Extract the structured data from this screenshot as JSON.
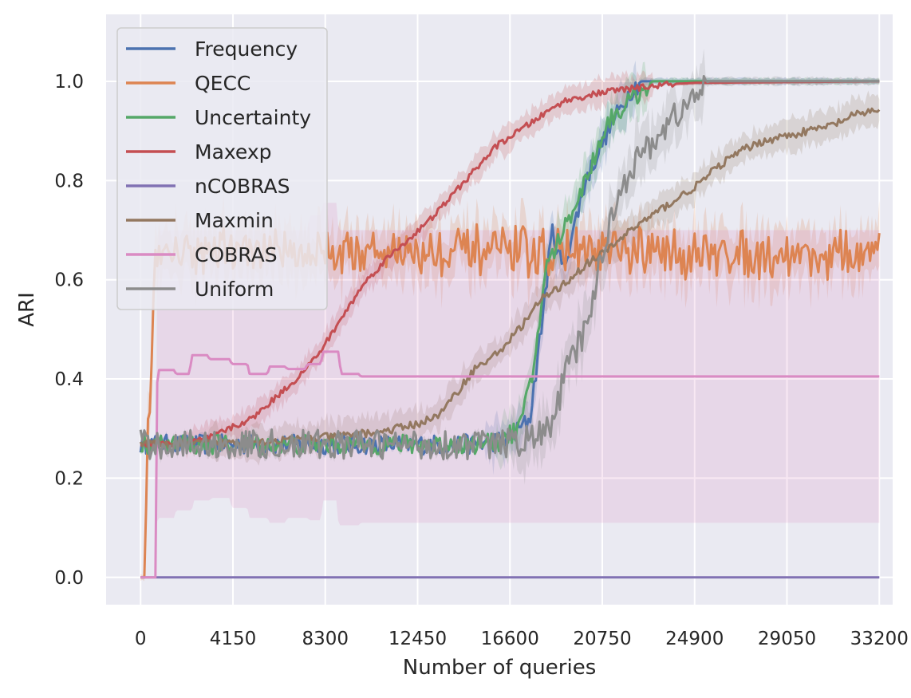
{
  "chart_data": {
    "type": "line",
    "title": "",
    "xlabel": "Number of queries",
    "ylabel": "ARI",
    "xlim": [
      -1550,
      33800
    ],
    "ylim": [
      -0.055,
      1.135
    ],
    "xticks": [
      0,
      4150,
      8300,
      12450,
      16600,
      20750,
      24900,
      29050,
      33200
    ],
    "yticks": [
      0.0,
      0.2,
      0.4,
      0.6,
      0.8,
      1.0
    ],
    "ytick_labels": [
      "0.0",
      "0.2",
      "0.4",
      "0.6",
      "0.8",
      "1.0"
    ],
    "grid": true,
    "legend_position": "top-left",
    "series": [
      {
        "name": "Frequency",
        "color": "#4c72b0",
        "noise": 0.02,
        "band": 0.04,
        "points": [
          [
            0,
            0.268
          ],
          [
            14500,
            0.268
          ],
          [
            15500,
            0.27
          ],
          [
            16600,
            0.28
          ],
          [
            17500,
            0.32
          ],
          [
            18000,
            0.5
          ],
          [
            18500,
            0.7
          ],
          [
            19000,
            0.62
          ],
          [
            20000,
            0.8
          ],
          [
            21000,
            0.9
          ],
          [
            22000,
            0.98
          ],
          [
            22500,
            1.0
          ],
          [
            33200,
            1.0
          ]
        ]
      },
      {
        "name": "QECC",
        "color": "#dd8452",
        "noise": 0.03,
        "band": 0.05,
        "points": [
          [
            0,
            0.0
          ],
          [
            200,
            0.0
          ],
          [
            300,
            0.31
          ],
          [
            450,
            0.35
          ],
          [
            600,
            0.62
          ],
          [
            800,
            0.66
          ],
          [
            33200,
            0.65
          ]
        ]
      },
      {
        "name": "Uncertainty",
        "color": "#55a868",
        "noise": 0.02,
        "band": 0.04,
        "points": [
          [
            0,
            0.268
          ],
          [
            14500,
            0.268
          ],
          [
            16000,
            0.27
          ],
          [
            17000,
            0.3
          ],
          [
            17600,
            0.4
          ],
          [
            18200,
            0.62
          ],
          [
            19000,
            0.7
          ],
          [
            20000,
            0.8
          ],
          [
            21000,
            0.92
          ],
          [
            22000,
            0.96
          ],
          [
            23000,
            1.0
          ],
          [
            33200,
            1.0
          ]
        ]
      },
      {
        "name": "Maxexp",
        "color": "#c44e52",
        "noise": 0.006,
        "band": 0.025,
        "points": [
          [
            0,
            0.268
          ],
          [
            2000,
            0.27
          ],
          [
            3000,
            0.28
          ],
          [
            4000,
            0.3
          ],
          [
            5000,
            0.32
          ],
          [
            6000,
            0.36
          ],
          [
            7000,
            0.4
          ],
          [
            8000,
            0.45
          ],
          [
            9000,
            0.52
          ],
          [
            10000,
            0.59
          ],
          [
            11000,
            0.64
          ],
          [
            12000,
            0.68
          ],
          [
            13000,
            0.72
          ],
          [
            14000,
            0.77
          ],
          [
            15000,
            0.82
          ],
          [
            16000,
            0.87
          ],
          [
            17000,
            0.9
          ],
          [
            18000,
            0.93
          ],
          [
            19000,
            0.96
          ],
          [
            20000,
            0.97
          ],
          [
            21000,
            0.98
          ],
          [
            22000,
            0.985
          ],
          [
            23000,
            0.99
          ],
          [
            24000,
            0.995
          ],
          [
            25000,
            0.997
          ],
          [
            33200,
            1.0
          ]
        ]
      },
      {
        "name": "nCOBRAS",
        "color": "#8172b3",
        "noise": 0,
        "band": 0,
        "points": [
          [
            0,
            0.0
          ],
          [
            33200,
            0.0
          ]
        ]
      },
      {
        "name": "Maxmin",
        "color": "#937860",
        "noise": 0.008,
        "band": 0.03,
        "points": [
          [
            0,
            0.268
          ],
          [
            3000,
            0.27
          ],
          [
            6000,
            0.275
          ],
          [
            9000,
            0.285
          ],
          [
            11000,
            0.295
          ],
          [
            12500,
            0.31
          ],
          [
            13500,
            0.33
          ],
          [
            14000,
            0.36
          ],
          [
            15000,
            0.42
          ],
          [
            16000,
            0.45
          ],
          [
            17000,
            0.5
          ],
          [
            18000,
            0.56
          ],
          [
            19000,
            0.59
          ],
          [
            20000,
            0.63
          ],
          [
            21000,
            0.66
          ],
          [
            22000,
            0.7
          ],
          [
            23000,
            0.73
          ],
          [
            24000,
            0.76
          ],
          [
            25000,
            0.79
          ],
          [
            26000,
            0.83
          ],
          [
            27000,
            0.86
          ],
          [
            28000,
            0.88
          ],
          [
            29000,
            0.89
          ],
          [
            30000,
            0.9
          ],
          [
            31000,
            0.91
          ],
          [
            32000,
            0.93
          ],
          [
            33200,
            0.945
          ]
        ]
      },
      {
        "name": "COBRAS",
        "color": "#da8bc3",
        "noise": 0,
        "band": 0,
        "points": [
          [
            0,
            0.0
          ],
          [
            700,
            0.0
          ],
          [
            750,
            0.418
          ],
          [
            1500,
            0.418
          ],
          [
            1600,
            0.41
          ],
          [
            2200,
            0.41
          ],
          [
            2300,
            0.448
          ],
          [
            3000,
            0.448
          ],
          [
            3100,
            0.44
          ],
          [
            4000,
            0.44
          ],
          [
            4100,
            0.43
          ],
          [
            4800,
            0.43
          ],
          [
            4900,
            0.41
          ],
          [
            5700,
            0.41
          ],
          [
            5800,
            0.425
          ],
          [
            6500,
            0.425
          ],
          [
            6600,
            0.42
          ],
          [
            7400,
            0.42
          ],
          [
            7500,
            0.43
          ],
          [
            8100,
            0.43
          ],
          [
            8200,
            0.455
          ],
          [
            8900,
            0.455
          ],
          [
            9000,
            0.41
          ],
          [
            9800,
            0.41
          ],
          [
            9900,
            0.405
          ],
          [
            33200,
            0.405
          ]
        ],
        "band_lower": [
          [
            0,
            0.0
          ],
          [
            700,
            0.0
          ],
          [
            750,
            0.12
          ],
          [
            1500,
            0.12
          ],
          [
            1600,
            0.135
          ],
          [
            2300,
            0.135
          ],
          [
            2400,
            0.155
          ],
          [
            3100,
            0.155
          ],
          [
            3200,
            0.16
          ],
          [
            4000,
            0.16
          ],
          [
            4100,
            0.14
          ],
          [
            4800,
            0.14
          ],
          [
            4900,
            0.12
          ],
          [
            5700,
            0.12
          ],
          [
            5800,
            0.11
          ],
          [
            6500,
            0.11
          ],
          [
            6600,
            0.12
          ],
          [
            7500,
            0.12
          ],
          [
            7600,
            0.115
          ],
          [
            8100,
            0.115
          ],
          [
            8200,
            0.155
          ],
          [
            8800,
            0.155
          ],
          [
            8900,
            0.105
          ],
          [
            9800,
            0.105
          ],
          [
            9900,
            0.11
          ],
          [
            33200,
            0.11
          ]
        ],
        "band_upper": [
          [
            0,
            0.0
          ],
          [
            700,
            0.0
          ],
          [
            750,
            0.7
          ],
          [
            7500,
            0.7
          ],
          [
            7600,
            0.73
          ],
          [
            8100,
            0.73
          ],
          [
            8200,
            0.755
          ],
          [
            8800,
            0.755
          ],
          [
            8900,
            0.7
          ],
          [
            33200,
            0.7
          ]
        ]
      },
      {
        "name": "Uniform",
        "color": "#8c8c8c",
        "noise": 0.03,
        "band": 0.05,
        "points": [
          [
            0,
            0.268
          ],
          [
            15500,
            0.268
          ],
          [
            16600,
            0.27
          ],
          [
            17500,
            0.28
          ],
          [
            18500,
            0.3
          ],
          [
            19000,
            0.4
          ],
          [
            19500,
            0.45
          ],
          [
            20000,
            0.5
          ],
          [
            20500,
            0.6
          ],
          [
            21000,
            0.7
          ],
          [
            21500,
            0.78
          ],
          [
            22000,
            0.82
          ],
          [
            22500,
            0.85
          ],
          [
            23000,
            0.88
          ],
          [
            23500,
            0.9
          ],
          [
            24000,
            0.93
          ],
          [
            24500,
            0.95
          ],
          [
            25000,
            0.97
          ],
          [
            25500,
            1.0
          ],
          [
            33200,
            1.0
          ]
        ]
      }
    ]
  }
}
